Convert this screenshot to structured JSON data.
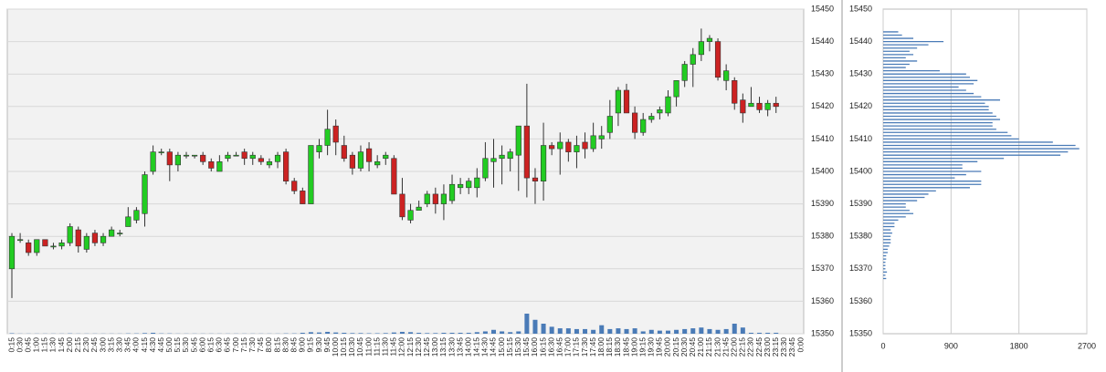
{
  "chart_data": {
    "type": "candlestick",
    "categories": [
      "0:15",
      "0:30",
      "0:45",
      "1:00",
      "1:15",
      "1:30",
      "1:45",
      "2:00",
      "2:15",
      "2:30",
      "2:45",
      "3:00",
      "3:15",
      "3:30",
      "3:45",
      "4:00",
      "4:15",
      "4:30",
      "4:45",
      "5:00",
      "5:15",
      "5:30",
      "5:45",
      "6:00",
      "6:15",
      "6:30",
      "6:45",
      "7:00",
      "7:15",
      "7:30",
      "7:45",
      "8:00",
      "8:15",
      "8:30",
      "8:45",
      "9:00",
      "9:15",
      "9:30",
      "9:45",
      "10:00",
      "10:15",
      "10:30",
      "10:45",
      "11:00",
      "11:15",
      "11:30",
      "11:45",
      "12:00",
      "12:15",
      "12:30",
      "12:45",
      "13:00",
      "13:15",
      "13:30",
      "13:45",
      "14:00",
      "14:15",
      "14:30",
      "14:45",
      "15:00",
      "15:15",
      "15:30",
      "15:45",
      "16:00",
      "16:15",
      "16:30",
      "16:45",
      "17:00",
      "17:15",
      "17:30",
      "17:45",
      "18:00",
      "18:15",
      "18:30",
      "18:45",
      "19:00",
      "19:15",
      "19:30",
      "19:45",
      "20:00",
      "20:15",
      "20:30",
      "20:45",
      "21:00",
      "21:15",
      "21:30",
      "21:45",
      "22:00",
      "22:15",
      "22:30",
      "22:45",
      "23:00",
      "23:15",
      "23:30",
      "23:45",
      "0:00"
    ],
    "candles": [
      {
        "open": 15370,
        "high": 15381,
        "low": 15361,
        "close": 15380
      },
      {
        "open": 15379,
        "high": 15381,
        "low": 15378,
        "close": 15379
      },
      {
        "open": 15378,
        "high": 15379,
        "low": 15374,
        "close": 15375
      },
      {
        "open": 15375,
        "high": 15379,
        "low": 15374,
        "close": 15379
      },
      {
        "open": 15379,
        "high": 15379,
        "low": 15377,
        "close": 15377
      },
      {
        "open": 15377,
        "high": 15378,
        "low": 15376,
        "close": 15377
      },
      {
        "open": 15377,
        "high": 15379,
        "low": 15376,
        "close": 15378
      },
      {
        "open": 15378,
        "high": 15384,
        "low": 15377,
        "close": 15383
      },
      {
        "open": 15382,
        "high": 15383,
        "low": 15375,
        "close": 15377
      },
      {
        "open": 15376,
        "high": 15381,
        "low": 15375,
        "close": 15380
      },
      {
        "open": 15381,
        "high": 15382,
        "low": 15377,
        "close": 15378
      },
      {
        "open": 15378,
        "high": 15381,
        "low": 15377,
        "close": 15380
      },
      {
        "open": 15380,
        "high": 15383,
        "low": 15380,
        "close": 15382
      },
      {
        "open": 15381,
        "high": 15382,
        "low": 15380,
        "close": 15381
      },
      {
        "open": 15383,
        "high": 15389,
        "low": 15383,
        "close": 15386
      },
      {
        "open": 15385,
        "high": 15389,
        "low": 15384,
        "close": 15388
      },
      {
        "open": 15387,
        "high": 15400,
        "low": 15383,
        "close": 15399
      },
      {
        "open": 15400,
        "high": 15408,
        "low": 15399,
        "close": 15406
      },
      {
        "open": 15406,
        "high": 15407,
        "low": 15405,
        "close": 15406
      },
      {
        "open": 15406,
        "high": 15407,
        "low": 15397,
        "close": 15402
      },
      {
        "open": 15402,
        "high": 15406,
        "low": 15400,
        "close": 15405
      },
      {
        "open": 15405,
        "high": 15406,
        "low": 15404,
        "close": 15405
      },
      {
        "open": 15405,
        "high": 15405,
        "low": 15404,
        "close": 15405
      },
      {
        "open": 15405,
        "high": 15406,
        "low": 15402,
        "close": 15403
      },
      {
        "open": 15403,
        "high": 15404,
        "low": 15400,
        "close": 15401
      },
      {
        "open": 15400,
        "high": 15405,
        "low": 15400,
        "close": 15403
      },
      {
        "open": 15404,
        "high": 15406,
        "low": 15403,
        "close": 15405
      },
      {
        "open": 15405,
        "high": 15406,
        "low": 15405,
        "close": 15405
      },
      {
        "open": 15406,
        "high": 15407,
        "low": 15402,
        "close": 15404
      },
      {
        "open": 15404,
        "high": 15406,
        "low": 15402,
        "close": 15405
      },
      {
        "open": 15404,
        "high": 15405,
        "low": 15402,
        "close": 15403
      },
      {
        "open": 15402,
        "high": 15404,
        "low": 15401,
        "close": 15403
      },
      {
        "open": 15403,
        "high": 15406,
        "low": 15401,
        "close": 15405
      },
      {
        "open": 15406,
        "high": 15407,
        "low": 15396,
        "close": 15397
      },
      {
        "open": 15397,
        "high": 15398,
        "low": 15393,
        "close": 15394
      },
      {
        "open": 15394,
        "high": 15395,
        "low": 15390,
        "close": 15390
      },
      {
        "open": 15390,
        "high": 15408,
        "low": 15390,
        "close": 15408
      },
      {
        "open": 15406,
        "high": 15410,
        "low": 15404,
        "close": 15408
      },
      {
        "open": 15408,
        "high": 15419,
        "low": 15405,
        "close": 15413
      },
      {
        "open": 15414,
        "high": 15416,
        "low": 15405,
        "close": 15409
      },
      {
        "open": 15408,
        "high": 15411,
        "low": 15403,
        "close": 15404
      },
      {
        "open": 15405,
        "high": 15406,
        "low": 15399,
        "close": 15401
      },
      {
        "open": 15401,
        "high": 15408,
        "low": 15400,
        "close": 15406
      },
      {
        "open": 15407,
        "high": 15409,
        "low": 15400,
        "close": 15403
      },
      {
        "open": 15402,
        "high": 15405,
        "low": 15401,
        "close": 15403
      },
      {
        "open": 15404,
        "high": 15406,
        "low": 15402,
        "close": 15405
      },
      {
        "open": 15404,
        "high": 15405,
        "low": 15393,
        "close": 15393
      },
      {
        "open": 15393,
        "high": 15398,
        "low": 15385,
        "close": 15386
      },
      {
        "open": 15385,
        "high": 15390,
        "low": 15384,
        "close": 15388
      },
      {
        "open": 15388,
        "high": 15391,
        "low": 15388,
        "close": 15389
      },
      {
        "open": 15390,
        "high": 15394,
        "low": 15389,
        "close": 15393
      },
      {
        "open": 15393,
        "high": 15395,
        "low": 15387,
        "close": 15390
      },
      {
        "open": 15390,
        "high": 15396,
        "low": 15385,
        "close": 15393
      },
      {
        "open": 15391,
        "high": 15399,
        "low": 15390,
        "close": 15396
      },
      {
        "open": 15395,
        "high": 15398,
        "low": 15393,
        "close": 15396
      },
      {
        "open": 15395,
        "high": 15398,
        "low": 15393,
        "close": 15397
      },
      {
        "open": 15395,
        "high": 15401,
        "low": 15392,
        "close": 15398
      },
      {
        "open": 15398,
        "high": 15409,
        "low": 15397,
        "close": 15404
      },
      {
        "open": 15403,
        "high": 15410,
        "low": 15395,
        "close": 15404
      },
      {
        "open": 15404,
        "high": 15408,
        "low": 15396,
        "close": 15405
      },
      {
        "open": 15404,
        "high": 15407,
        "low": 15400,
        "close": 15406
      },
      {
        "open": 15405,
        "high": 15414,
        "low": 15394,
        "close": 15414
      },
      {
        "open": 15414,
        "high": 15427,
        "low": 15392,
        "close": 15398
      },
      {
        "open": 15398,
        "high": 15401,
        "low": 15390,
        "close": 15397
      },
      {
        "open": 15397,
        "high": 15415,
        "low": 15391,
        "close": 15408
      },
      {
        "open": 15408,
        "high": 15409,
        "low": 15405,
        "close": 15407
      },
      {
        "open": 15407,
        "high": 15412,
        "low": 15399,
        "close": 15409
      },
      {
        "open": 15409,
        "high": 15410,
        "low": 15403,
        "close": 15406
      },
      {
        "open": 15406,
        "high": 15411,
        "low": 15401,
        "close": 15408
      },
      {
        "open": 15409,
        "high": 15412,
        "low": 15404,
        "close": 15407
      },
      {
        "open": 15407,
        "high": 15415,
        "low": 15406,
        "close": 15411
      },
      {
        "open": 15410,
        "high": 15414,
        "low": 15407,
        "close": 15411
      },
      {
        "open": 15412,
        "high": 15422,
        "low": 15410,
        "close": 15417
      },
      {
        "open": 15418,
        "high": 15426,
        "low": 15414,
        "close": 15425
      },
      {
        "open": 15425,
        "high": 15427,
        "low": 15418,
        "close": 15418
      },
      {
        "open": 15418,
        "high": 15420,
        "low": 15410,
        "close": 15412
      },
      {
        "open": 15412,
        "high": 15418,
        "low": 15411,
        "close": 15416
      },
      {
        "open": 15416,
        "high": 15418,
        "low": 15415,
        "close": 15417
      },
      {
        "open": 15418,
        "high": 15420,
        "low": 15416,
        "close": 15419
      },
      {
        "open": 15418,
        "high": 15425,
        "low": 15417,
        "close": 15423
      },
      {
        "open": 15423,
        "high": 15428,
        "low": 15420,
        "close": 15428
      },
      {
        "open": 15428,
        "high": 15434,
        "low": 15426,
        "close": 15433
      },
      {
        "open": 15433,
        "high": 15438,
        "low": 15426,
        "close": 15436
      },
      {
        "open": 15436,
        "high": 15444,
        "low": 15434,
        "close": 15440
      },
      {
        "open": 15440,
        "high": 15442,
        "low": 15437,
        "close": 15441
      },
      {
        "open": 15440,
        "high": 15441,
        "low": 15428,
        "close": 15429
      },
      {
        "open": 15428,
        "high": 15433,
        "low": 15425,
        "close": 15431
      },
      {
        "open": 15428,
        "high": 15429,
        "low": 15419,
        "close": 15421
      },
      {
        "open": 15422,
        "high": 15424,
        "low": 15415,
        "close": 15418
      },
      {
        "open": 15420,
        "high": 15426,
        "low": 15420,
        "close": 15421
      },
      {
        "open": 15421,
        "high": 15423,
        "low": 15418,
        "close": 15419
      },
      {
        "open": 15419,
        "high": 15422,
        "low": 15417,
        "close": 15421
      },
      {
        "open": 15421,
        "high": 15423,
        "low": 15418,
        "close": 15420
      },
      null,
      null,
      null
    ],
    "volume": [
      30,
      10,
      10,
      10,
      10,
      10,
      10,
      20,
      10,
      10,
      10,
      10,
      10,
      10,
      20,
      20,
      40,
      60,
      20,
      20,
      10,
      10,
      10,
      10,
      10,
      10,
      10,
      10,
      10,
      10,
      10,
      10,
      10,
      20,
      20,
      60,
      100,
      80,
      120,
      80,
      60,
      40,
      40,
      30,
      30,
      40,
      80,
      120,
      100,
      60,
      40,
      40,
      60,
      60,
      60,
      60,
      100,
      150,
      250,
      150,
      100,
      150,
      1300,
      900,
      650,
      450,
      350,
      350,
      300,
      300,
      250,
      550,
      300,
      350,
      300,
      350,
      150,
      250,
      200,
      200,
      250,
      300,
      350,
      400,
      300,
      250,
      300,
      650,
      400,
      60,
      60,
      60,
      60,
      null,
      null,
      null
    ],
    "up_color": "#22cc22",
    "down_color": "#cc2222",
    "volume_color": "#4a7bb7",
    "ylim": [
      15350,
      15450
    ],
    "yticks": [
      15350,
      15360,
      15370,
      15380,
      15390,
      15400,
      15410,
      15420,
      15430,
      15440,
      15450
    ],
    "grid": true,
    "profile": {
      "prices": [
        15443,
        15442,
        15441,
        15440,
        15439,
        15438,
        15437,
        15436,
        15435,
        15434,
        15433,
        15432,
        15431,
        15430,
        15429,
        15428,
        15427,
        15426,
        15425,
        15424,
        15423,
        15422,
        15421,
        15420,
        15419,
        15418,
        15417,
        15416,
        15415,
        15414,
        15413,
        15412,
        15411,
        15410,
        15409,
        15408,
        15407,
        15406,
        15405,
        15404,
        15403,
        15402,
        15401,
        15400,
        15399,
        15398,
        15397,
        15396,
        15395,
        15394,
        15393,
        15392,
        15391,
        15390,
        15389,
        15388,
        15387,
        15386,
        15385,
        15384,
        15383,
        15382,
        15381,
        15380,
        15379,
        15378,
        15377,
        15376,
        15375,
        15374,
        15373,
        15372,
        15371,
        15370,
        15369,
        15368,
        15367
      ],
      "values": [
        200,
        250,
        400,
        800,
        600,
        450,
        350,
        400,
        300,
        450,
        350,
        300,
        750,
        1100,
        1150,
        1250,
        1200,
        1000,
        1100,
        1200,
        1300,
        1550,
        1350,
        1400,
        1400,
        1450,
        1500,
        1550,
        1450,
        1450,
        1500,
        1650,
        1700,
        1800,
        2250,
        2550,
        2600,
        2450,
        2350,
        1600,
        1250,
        1050,
        1050,
        1300,
        1100,
        950,
        1300,
        1300,
        1150,
        700,
        600,
        550,
        450,
        300,
        300,
        350,
        400,
        300,
        200,
        150,
        150,
        100,
        120,
        100,
        100,
        100,
        80,
        60,
        60,
        40,
        40,
        30,
        30,
        30,
        50,
        30,
        40
      ],
      "color": "#4a7bb7",
      "xlim": [
        0,
        2700
      ],
      "xticks": [
        0,
        900,
        1800,
        2700
      ]
    }
  }
}
